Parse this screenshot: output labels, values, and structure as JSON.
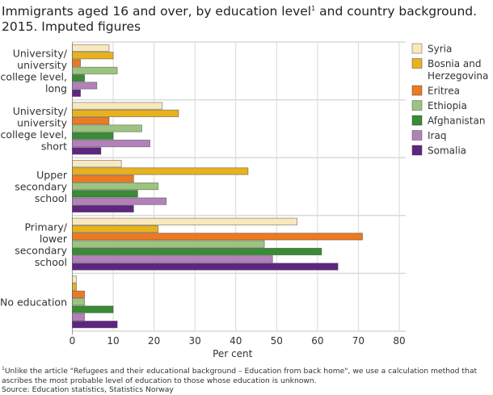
{
  "chart_data": {
    "type": "bar",
    "orientation": "horizontal",
    "title": "Immigrants aged 16 and over, by education level",
    "title_sup": "1",
    "title_rest": " and country background. 2015. Imputed figures",
    "categories": [
      [
        "University/",
        "university",
        "college level,",
        "long"
      ],
      [
        "University/",
        "university",
        "college level,",
        "short"
      ],
      [
        "Upper",
        "secondary",
        "school"
      ],
      [
        "Primary/",
        "lower",
        "secondary",
        "school"
      ],
      [
        "No education"
      ]
    ],
    "series": [
      {
        "name": "Syria",
        "color": "#f9e8bd",
        "values": [
          9,
          22,
          12,
          55,
          1
        ]
      },
      {
        "name": "Bosnia and Herzegovina",
        "legend_lines": [
          "Bosnia and",
          "Herzegovina"
        ],
        "color": "#e8b21e",
        "values": [
          10,
          26,
          43,
          21,
          1
        ]
      },
      {
        "name": "Eritrea",
        "color": "#ec7a23",
        "values": [
          2,
          9,
          15,
          71,
          3
        ]
      },
      {
        "name": "Ethiopia",
        "color": "#9dc47f",
        "values": [
          11,
          17,
          21,
          47,
          3
        ]
      },
      {
        "name": "Afghanistan",
        "color": "#3a8a36",
        "values": [
          3,
          10,
          16,
          61,
          10
        ]
      },
      {
        "name": "Iraq",
        "color": "#b381b9",
        "values": [
          6,
          19,
          23,
          49,
          3
        ]
      },
      {
        "name": "Somalia",
        "color": "#5f2580",
        "values": [
          2,
          7,
          15,
          65,
          11
        ]
      }
    ],
    "xlabel": "Per cent",
    "xlim": [
      0,
      80
    ],
    "xticks": [
      0,
      10,
      20,
      30,
      40,
      50,
      60,
      70,
      80
    ],
    "grid": true,
    "legend_position": "right"
  },
  "footnote": {
    "sup": "1",
    "text": "Unlike the article \"Refugees and their educational background – Education from back home\", we use a calculation method that ascribes the most probable level of education to those whose education is unknown.",
    "source": "Source: Education statistics, Statistics Norway"
  }
}
